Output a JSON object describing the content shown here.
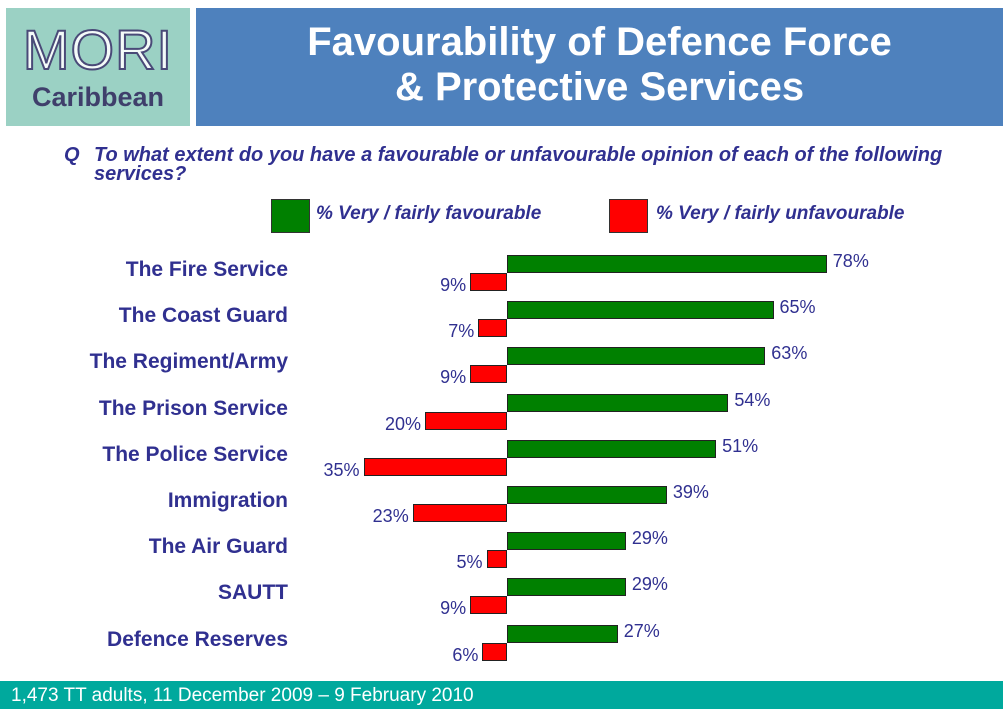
{
  "logo": {
    "brand": "MORI",
    "sub": "Caribbean"
  },
  "header": {
    "title_line1": "Favourability of Defence Force",
    "title_line2": "& Protective Services"
  },
  "question": {
    "marker": "Q",
    "text": "To what extent do you have a favourable or unfavourable opinion of each of the following services?"
  },
  "footer": {
    "text": "1,473 TT adults, 11 December 2009 – 9 February  2010"
  },
  "colors": {
    "favourable": "#008000",
    "unfavourable": "#ff0000",
    "text": "#303090"
  },
  "chart_data": {
    "type": "bar",
    "orientation": "horizontal-diverging",
    "categories": [
      "The Fire Service",
      "The Coast Guard",
      "The Regiment/Army",
      "The Prison Service",
      "The Police Service",
      "Immigration",
      "The Air Guard",
      "SAUTT",
      "Defence Reserves"
    ],
    "series": [
      {
        "name": "% Very / fairly favourable",
        "values": [
          78,
          65,
          63,
          54,
          51,
          39,
          29,
          29,
          27
        ],
        "labels": [
          "78%",
          "65%",
          "63%",
          "54%",
          "51%",
          "39%",
          "29%",
          "29%",
          "27%"
        ]
      },
      {
        "name": "% Very / fairly unfavourable",
        "values": [
          9,
          7,
          9,
          20,
          35,
          23,
          5,
          9,
          6
        ],
        "labels": [
          "9%",
          "7%",
          "9%",
          "20%",
          "35%",
          "23%",
          "5%",
          "9%",
          "6%"
        ]
      }
    ],
    "legend_position": "top"
  }
}
